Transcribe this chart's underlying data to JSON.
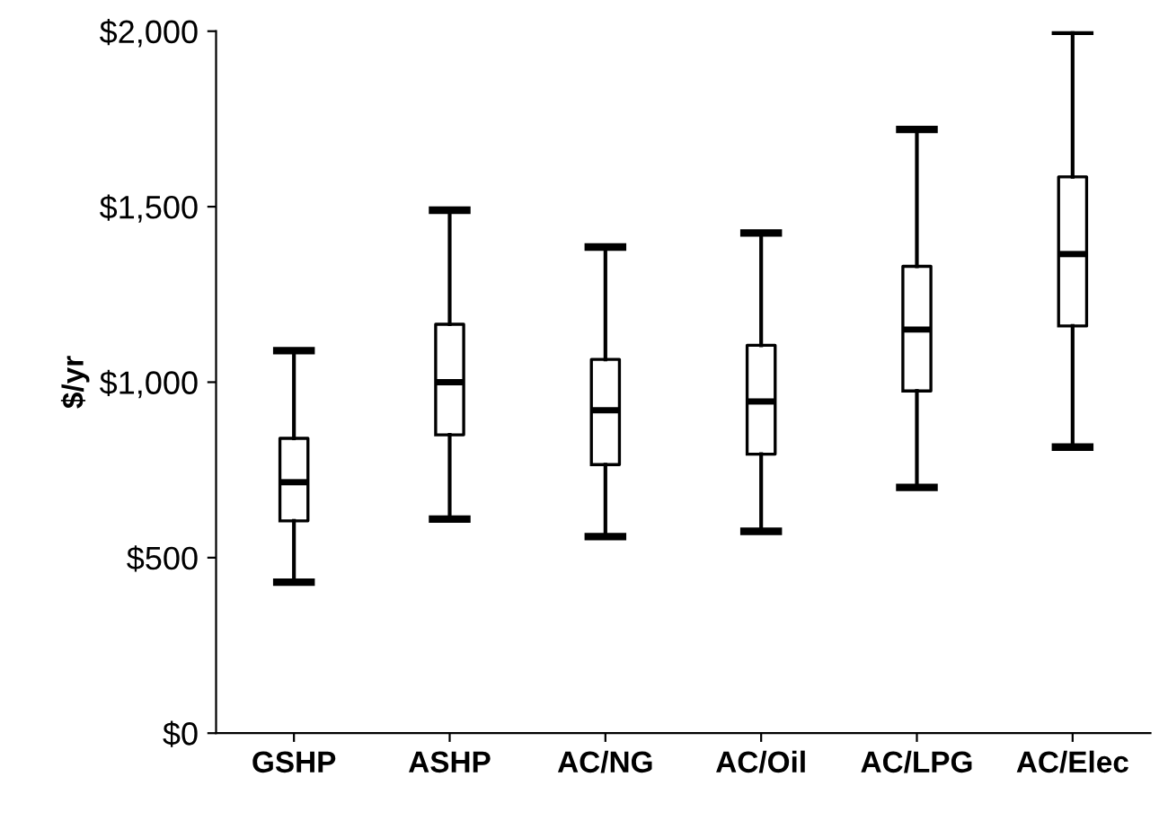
{
  "chart_data": {
    "type": "box",
    "ylabel": "$/yr",
    "categories": [
      "GSHP",
      "ASHP",
      "AC/NG",
      "AC/Oil",
      "AC/LPG",
      "AC/Elec"
    ],
    "boxes": [
      {
        "low": 430,
        "q1": 605,
        "median": 715,
        "q3": 840,
        "high": 1090
      },
      {
        "low": 610,
        "q1": 850,
        "median": 1000,
        "q3": 1165,
        "high": 1490
      },
      {
        "low": 560,
        "q1": 765,
        "median": 920,
        "q3": 1065,
        "high": 1385
      },
      {
        "low": 575,
        "q1": 795,
        "median": 945,
        "q3": 1105,
        "high": 1425
      },
      {
        "low": 700,
        "q1": 975,
        "median": 1150,
        "q3": 1330,
        "high": 1720
      },
      {
        "low": 815,
        "q1": 1160,
        "median": 1365,
        "q3": 1585,
        "high": 2000
      }
    ],
    "color": "#000000",
    "ylim": [
      0,
      2000
    ],
    "yticks": [
      {
        "value": 0,
        "label": "$0"
      },
      {
        "value": 500,
        "label": "$500"
      },
      {
        "value": 1000,
        "label": "$1,000"
      },
      {
        "value": 1500,
        "label": "$1,500"
      },
      {
        "value": 2000,
        "label": "$2,000"
      }
    ],
    "grid": false
  }
}
